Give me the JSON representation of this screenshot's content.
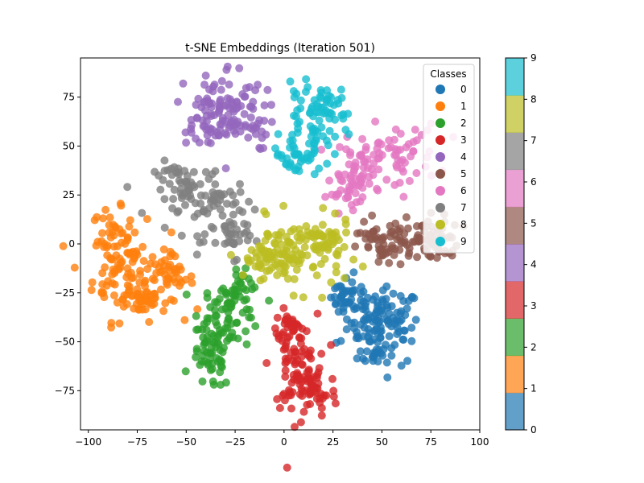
{
  "chart_data": {
    "type": "scatter",
    "title": "t-SNE Embeddings (Iteration 501)",
    "xlabel": "",
    "ylabel": "",
    "xlim": [
      -104,
      100
    ],
    "ylim": [
      -95,
      95
    ],
    "xticks": [
      -100,
      -75,
      -50,
      -25,
      0,
      25,
      50,
      75,
      100
    ],
    "yticks": [
      -75,
      -50,
      -25,
      0,
      25,
      50,
      75
    ],
    "grid": false,
    "legend": {
      "title": "Classes",
      "placement": "top-right",
      "entries": [
        "0",
        "1",
        "2",
        "3",
        "4",
        "5",
        "6",
        "7",
        "8",
        "9"
      ]
    },
    "colorbar": {
      "ticks": [
        "0",
        "1",
        "2",
        "3",
        "4",
        "5",
        "6",
        "7",
        "8",
        "9"
      ],
      "range": [
        0,
        9
      ]
    },
    "series": [
      {
        "name": "0",
        "color": "#1f77b4",
        "clusters": [
          {
            "cx": 55,
            "cy": -42,
            "rx": 7,
            "ry": 10,
            "n": 70
          },
          {
            "cx": 40,
            "cy": -37,
            "rx": 7,
            "ry": 9,
            "n": 60
          },
          {
            "cx": 30,
            "cy": -26,
            "rx": 4,
            "ry": 4,
            "n": 25
          },
          {
            "cx": 46,
            "cy": -56,
            "rx": 4,
            "ry": 3,
            "n": 15
          }
        ]
      },
      {
        "name": "1",
        "color": "#ff7f0e",
        "clusters": [
          {
            "cx": -78,
            "cy": -15,
            "rx": 10,
            "ry": 12,
            "n": 90
          },
          {
            "cx": -88,
            "cy": 2,
            "rx": 5,
            "ry": 8,
            "n": 40
          },
          {
            "cx": -60,
            "cy": -18,
            "rx": 7,
            "ry": 6,
            "n": 40
          },
          {
            "cx": -72,
            "cy": -28,
            "rx": 5,
            "ry": 5,
            "n": 25
          }
        ]
      },
      {
        "name": "2",
        "color": "#2ca02c",
        "clusters": [
          {
            "cx": -37,
            "cy": -57,
            "rx": 5,
            "ry": 9,
            "n": 60
          },
          {
            "cx": -27,
            "cy": -35,
            "rx": 8,
            "ry": 9,
            "n": 60
          },
          {
            "cx": -22,
            "cy": -22,
            "rx": 4,
            "ry": 4,
            "n": 20
          }
        ]
      },
      {
        "name": "3",
        "color": "#d62728",
        "clusters": [
          {
            "cx": 5,
            "cy": -62,
            "rx": 6,
            "ry": 13,
            "n": 80
          },
          {
            "cx": 15,
            "cy": -75,
            "rx": 6,
            "ry": 7,
            "n": 45
          },
          {
            "cx": 3,
            "cy": -42,
            "rx": 4,
            "ry": 4,
            "n": 20
          }
        ]
      },
      {
        "name": "4",
        "color": "#9467bd",
        "clusters": [
          {
            "cx": -28,
            "cy": 70,
            "rx": 9,
            "ry": 11,
            "n": 70
          },
          {
            "cx": -40,
            "cy": 65,
            "rx": 7,
            "ry": 7,
            "n": 40
          },
          {
            "cx": -18,
            "cy": 60,
            "rx": 5,
            "ry": 6,
            "n": 25
          }
        ]
      },
      {
        "name": "5",
        "color": "#8c564b",
        "clusters": [
          {
            "cx": 65,
            "cy": 3,
            "rx": 12,
            "ry": 6,
            "n": 70
          },
          {
            "cx": 52,
            "cy": -2,
            "rx": 7,
            "ry": 5,
            "n": 35
          },
          {
            "cx": 78,
            "cy": 1,
            "rx": 6,
            "ry": 5,
            "n": 25
          }
        ]
      },
      {
        "name": "6",
        "color": "#e377c2",
        "clusters": [
          {
            "cx": 55,
            "cy": 45,
            "rx": 12,
            "ry": 8,
            "n": 70
          },
          {
            "cx": 38,
            "cy": 36,
            "rx": 6,
            "ry": 6,
            "n": 35
          },
          {
            "cx": 30,
            "cy": 26,
            "rx": 4,
            "ry": 4,
            "n": 20
          }
        ]
      },
      {
        "name": "7",
        "color": "#7f7f7f",
        "clusters": [
          {
            "cx": -50,
            "cy": 28,
            "rx": 8,
            "ry": 7,
            "n": 55
          },
          {
            "cx": -33,
            "cy": 18,
            "rx": 9,
            "ry": 8,
            "n": 55
          },
          {
            "cx": -25,
            "cy": 3,
            "rx": 4,
            "ry": 5,
            "n": 25
          }
        ]
      },
      {
        "name": "8",
        "color": "#bcbd22",
        "clusters": [
          {
            "cx": 5,
            "cy": -5,
            "rx": 13,
            "ry": 9,
            "n": 100
          },
          {
            "cx": 20,
            "cy": 1,
            "rx": 7,
            "ry": 5,
            "n": 40
          },
          {
            "cx": -10,
            "cy": -8,
            "rx": 6,
            "ry": 5,
            "n": 30
          }
        ]
      },
      {
        "name": "9",
        "color": "#17becf",
        "clusters": [
          {
            "cx": 15,
            "cy": 58,
            "rx": 8,
            "ry": 10,
            "n": 65
          },
          {
            "cx": 20,
            "cy": 73,
            "rx": 5,
            "ry": 4,
            "n": 30
          },
          {
            "cx": 5,
            "cy": 45,
            "rx": 5,
            "ry": 5,
            "n": 25
          }
        ]
      }
    ]
  }
}
